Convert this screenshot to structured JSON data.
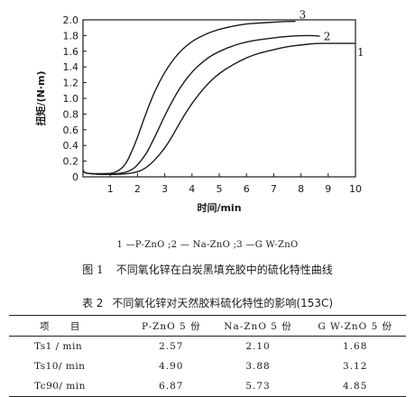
{
  "chart_data": {
    "type": "line",
    "xlabel": "时间/min",
    "ylabel": "扭矩/(N·m)",
    "xlim": [
      0,
      10
    ],
    "ylim": [
      0,
      2.0
    ],
    "x_ticks": [
      "1",
      "2",
      "3",
      "4",
      "5",
      "6",
      "7",
      "8",
      "9",
      "10"
    ],
    "y_ticks": [
      "0",
      "0.2",
      "0.4",
      "0.6",
      "0.8",
      "1.0",
      "1.2",
      "1.4",
      "1.6",
      "1.8",
      "2.0"
    ],
    "grid": false,
    "series": [
      {
        "label": "1",
        "points": [
          [
            0,
            0.08
          ],
          [
            0.1,
            0.04
          ],
          [
            1,
            0.03
          ],
          [
            1.5,
            0.035
          ],
          [
            2,
            0.06
          ],
          [
            2.3,
            0.11
          ],
          [
            2.6,
            0.2
          ],
          [
            3,
            0.36
          ],
          [
            3.3,
            0.53
          ],
          [
            3.6,
            0.72
          ],
          [
            4,
            0.94
          ],
          [
            4.5,
            1.16
          ],
          [
            5,
            1.32
          ],
          [
            5.5,
            1.43
          ],
          [
            6,
            1.52
          ],
          [
            6.5,
            1.58
          ],
          [
            7,
            1.62
          ],
          [
            7.5,
            1.66
          ],
          [
            8,
            1.68
          ],
          [
            8.5,
            1.7
          ],
          [
            9,
            1.7
          ],
          [
            10,
            1.7
          ]
        ]
      },
      {
        "label": "2",
        "points": [
          [
            0,
            0.08
          ],
          [
            0.1,
            0.04
          ],
          [
            1,
            0.03
          ],
          [
            1.5,
            0.05
          ],
          [
            1.8,
            0.09
          ],
          [
            2,
            0.15
          ],
          [
            2.3,
            0.28
          ],
          [
            2.6,
            0.48
          ],
          [
            3,
            0.78
          ],
          [
            3.3,
            0.98
          ],
          [
            3.6,
            1.16
          ],
          [
            4,
            1.34
          ],
          [
            4.5,
            1.5
          ],
          [
            5,
            1.6
          ],
          [
            5.5,
            1.67
          ],
          [
            6,
            1.72
          ],
          [
            6.5,
            1.75
          ],
          [
            7,
            1.77
          ],
          [
            7.5,
            1.79
          ],
          [
            8,
            1.8
          ],
          [
            8.5,
            1.8
          ],
          [
            8.7,
            1.79
          ]
        ]
      },
      {
        "label": "3",
        "points": [
          [
            0,
            0.08
          ],
          [
            0.1,
            0.04
          ],
          [
            1,
            0.04
          ],
          [
            1.2,
            0.06
          ],
          [
            1.4,
            0.1
          ],
          [
            1.6,
            0.18
          ],
          [
            1.8,
            0.33
          ],
          [
            2,
            0.5
          ],
          [
            2.3,
            0.8
          ],
          [
            2.6,
            1.07
          ],
          [
            3,
            1.34
          ],
          [
            3.5,
            1.58
          ],
          [
            4,
            1.73
          ],
          [
            4.5,
            1.82
          ],
          [
            5,
            1.88
          ],
          [
            5.5,
            1.92
          ],
          [
            6,
            1.95
          ],
          [
            6.5,
            1.96
          ],
          [
            7,
            1.97
          ],
          [
            7.5,
            1.98
          ],
          [
            7.8,
            1.98
          ]
        ]
      }
    ]
  },
  "legend": "1 —P-ZnO ;2 — Na-ZnO ;3 —G W-ZnO",
  "figure_caption": {
    "number": "图 1",
    "text": "不同氧化锌在白炭黑填充胶中的硫化特性曲线"
  },
  "table": {
    "caption_number": "表 2",
    "caption_text": "不同氧化锌对天然胶料硫化特性的影响(153C)",
    "headers": [
      "项 目",
      "P-ZnO 5 份",
      "Na-ZnO 5 份",
      "G W-ZnO 5 份"
    ],
    "rows": [
      [
        "Ts1 / min",
        "2.57",
        "2.10",
        "1.68"
      ],
      [
        "Ts10/ min",
        "4.90",
        "3.88",
        "3.12"
      ],
      [
        "Tc90/ min",
        "6.87",
        "5.73",
        "4.85"
      ]
    ]
  }
}
